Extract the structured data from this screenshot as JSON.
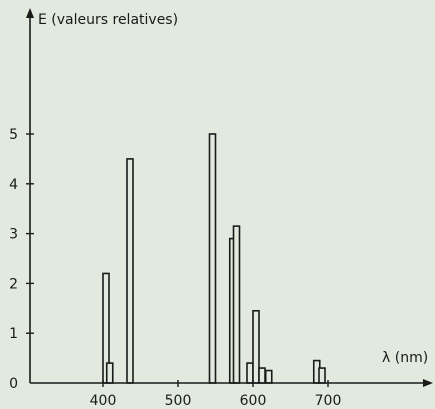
{
  "chart_data": {
    "type": "bar",
    "ylabel": "E (valeurs relatives)",
    "xlabel": "λ (nm)",
    "xlim": [
      300,
      735
    ],
    "ylim": [
      0,
      5
    ],
    "x_ticks": [
      400,
      500,
      600,
      700
    ],
    "y_ticks": [
      0,
      1,
      2,
      3,
      4,
      5
    ],
    "grid": false,
    "series": [
      {
        "values": [
          {
            "x": 404,
            "y": 2.2
          },
          {
            "x": 409,
            "y": 0.4
          },
          {
            "x": 436,
            "y": 4.5
          },
          {
            "x": 546,
            "y": 5.0
          },
          {
            "x": 573,
            "y": 2.9
          },
          {
            "x": 578,
            "y": 3.15
          },
          {
            "x": 596,
            "y": 0.4
          },
          {
            "x": 604,
            "y": 1.45
          },
          {
            "x": 612,
            "y": 0.3
          },
          {
            "x": 621,
            "y": 0.25
          },
          {
            "x": 685,
            "y": 0.45
          },
          {
            "x": 692,
            "y": 0.3
          }
        ]
      }
    ]
  }
}
